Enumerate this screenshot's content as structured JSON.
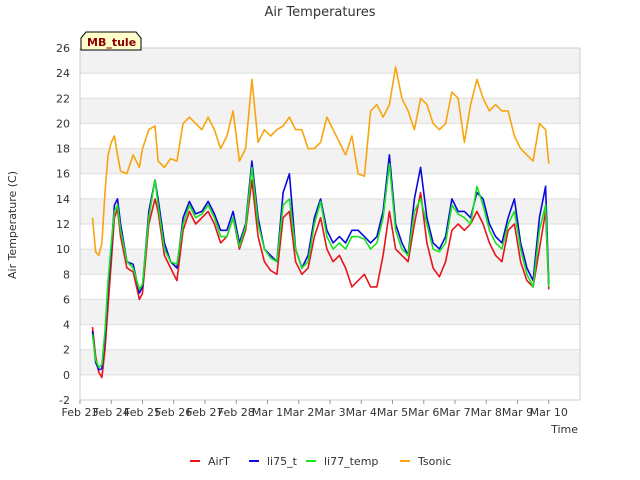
{
  "chart_data": {
    "type": "line",
    "title": "Air Temperatures",
    "xlabel": "Time",
    "ylabel": "Air Temperature (C)",
    "station_badge": "MB_tule",
    "ylim": [
      -2,
      26
    ],
    "yticks": [
      -2,
      0,
      2,
      4,
      6,
      8,
      10,
      12,
      14,
      16,
      18,
      20,
      22,
      24,
      26
    ],
    "xlim": [
      0,
      16
    ],
    "xticks": [
      "Feb 23",
      "Feb 24",
      "Feb 25",
      "Feb 26",
      "Feb 27",
      "Feb 28",
      "Mar 1",
      "Mar 2",
      "Mar 3",
      "Mar 4",
      "Mar 5",
      "Mar 6",
      "Mar 7",
      "Mar 8",
      "Mar 9",
      "Mar 10"
    ],
    "grid": true,
    "legend_position": "bottom",
    "x": [
      0.4,
      0.5,
      0.6,
      0.7,
      0.8,
      0.9,
      1.0,
      1.1,
      1.2,
      1.3,
      1.5,
      1.7,
      1.9,
      2.0,
      2.2,
      2.4,
      2.5,
      2.7,
      2.9,
      3.1,
      3.3,
      3.5,
      3.7,
      3.9,
      4.1,
      4.3,
      4.5,
      4.7,
      4.9,
      5.1,
      5.3,
      5.5,
      5.7,
      5.9,
      6.1,
      6.3,
      6.5,
      6.7,
      6.9,
      7.1,
      7.3,
      7.5,
      7.7,
      7.9,
      8.1,
      8.3,
      8.5,
      8.7,
      8.9,
      9.1,
      9.3,
      9.5,
      9.7,
      9.9,
      10.1,
      10.3,
      10.5,
      10.7,
      10.9,
      11.1,
      11.3,
      11.5,
      11.7,
      11.9,
      12.1,
      12.3,
      12.5,
      12.7,
      12.9,
      13.1,
      13.3,
      13.5,
      13.7,
      13.9,
      14.1,
      14.3,
      14.5,
      14.7,
      14.9,
      15.0
    ],
    "series": [
      {
        "name": "AirT",
        "color": "#e8141b",
        "values": [
          3.8,
          1.5,
          0.2,
          -0.2,
          2.0,
          5.5,
          9.0,
          12.5,
          13.2,
          11.0,
          8.5,
          8.2,
          6.0,
          6.5,
          12.0,
          14.0,
          13.0,
          9.5,
          8.5,
          7.5,
          11.5,
          13.0,
          12.0,
          12.5,
          13.0,
          12.0,
          10.5,
          11.0,
          12.5,
          10.0,
          11.5,
          15.5,
          11.0,
          9.0,
          8.3,
          8.0,
          12.5,
          13.0,
          9.0,
          8.0,
          8.5,
          11.0,
          12.5,
          10.0,
          9.0,
          9.5,
          8.5,
          7.0,
          7.5,
          8.0,
          7.0,
          7.0,
          9.5,
          13.0,
          10.0,
          9.5,
          9.0,
          12.0,
          14.5,
          10.5,
          8.5,
          7.8,
          9.0,
          11.5,
          12.0,
          11.5,
          12.0,
          13.0,
          12.0,
          10.5,
          9.5,
          9.0,
          11.5,
          12.0,
          9.0,
          7.5,
          7.0,
          10.0,
          13.0,
          6.8
        ]
      },
      {
        "name": "li75_t",
        "color": "#0a0adc",
        "values": [
          3.5,
          1.0,
          0.4,
          0.5,
          3.0,
          7.0,
          10.0,
          13.5,
          14.0,
          12.0,
          9.0,
          8.8,
          6.5,
          7.0,
          13.0,
          15.5,
          14.0,
          10.5,
          9.0,
          8.5,
          12.5,
          13.8,
          12.8,
          13.0,
          13.8,
          12.8,
          11.5,
          11.5,
          13.0,
          10.5,
          12.0,
          17.0,
          12.5,
          10.0,
          9.5,
          9.0,
          14.5,
          16.0,
          10.0,
          8.5,
          9.5,
          12.5,
          14.0,
          11.5,
          10.5,
          11.0,
          10.5,
          11.5,
          11.5,
          11.0,
          10.5,
          11.0,
          13.0,
          17.5,
          12.0,
          10.5,
          9.5,
          14.0,
          16.5,
          12.5,
          10.5,
          10.0,
          11.0,
          14.0,
          13.0,
          13.0,
          12.5,
          14.5,
          14.0,
          12.0,
          11.0,
          10.5,
          12.5,
          14.0,
          10.5,
          8.5,
          7.5,
          12.5,
          15.0,
          7.2
        ]
      },
      {
        "name": "li77_temp",
        "color": "#17e31f",
        "values": [
          3.2,
          1.2,
          0.6,
          0.8,
          3.5,
          7.5,
          10.5,
          13.0,
          13.5,
          11.5,
          9.0,
          8.5,
          6.8,
          7.2,
          12.5,
          15.5,
          13.5,
          10.0,
          9.0,
          8.8,
          12.0,
          13.5,
          12.5,
          12.8,
          13.5,
          12.5,
          11.0,
          11.0,
          12.5,
          10.2,
          11.8,
          16.5,
          12.0,
          10.0,
          9.3,
          9.0,
          13.5,
          14.0,
          10.0,
          8.5,
          9.0,
          12.0,
          13.8,
          11.0,
          10.0,
          10.5,
          10.0,
          11.0,
          11.0,
          10.8,
          10.0,
          10.5,
          12.5,
          16.8,
          11.5,
          10.0,
          9.5,
          13.0,
          14.0,
          12.0,
          10.0,
          9.8,
          10.5,
          13.5,
          12.8,
          12.5,
          12.0,
          15.0,
          13.5,
          11.5,
          10.5,
          10.0,
          12.0,
          13.0,
          10.0,
          8.0,
          7.0,
          11.5,
          13.5,
          7.0
        ]
      },
      {
        "name": "Tsonic",
        "color": "#f9a40e",
        "values": [
          12.5,
          9.8,
          9.5,
          10.5,
          14.5,
          17.5,
          18.5,
          19.0,
          17.5,
          16.2,
          16.0,
          17.5,
          16.5,
          18.0,
          19.5,
          19.8,
          17.0,
          16.5,
          17.2,
          17.0,
          20.0,
          20.5,
          20.0,
          19.5,
          20.5,
          19.5,
          18.0,
          19.0,
          21.0,
          17.0,
          18.0,
          23.5,
          18.5,
          19.5,
          19.0,
          19.5,
          19.8,
          20.5,
          19.5,
          19.5,
          18.0,
          18.0,
          18.5,
          20.5,
          19.5,
          18.5,
          17.5,
          19.0,
          16.0,
          15.8,
          21.0,
          21.5,
          20.5,
          21.5,
          24.5,
          22.0,
          21.0,
          19.5,
          22.0,
          21.5,
          20.0,
          19.5,
          20.0,
          22.5,
          22.0,
          18.5,
          21.5,
          23.5,
          22.0,
          21.0,
          21.5,
          21.0,
          21.0,
          19.0,
          18.0,
          17.5,
          17.0,
          20.0,
          19.5,
          16.8
        ]
      }
    ]
  }
}
